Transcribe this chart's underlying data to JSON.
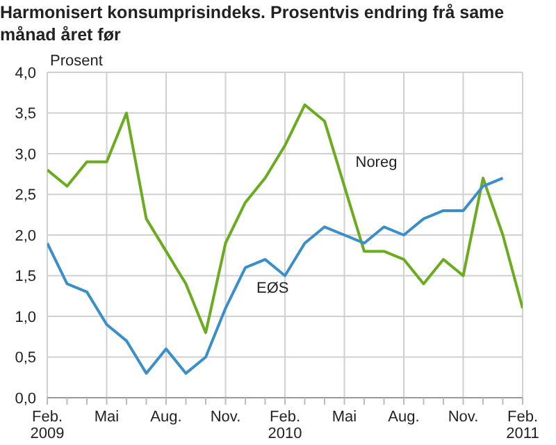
{
  "chart_data": {
    "type": "line",
    "title": "Harmonisert konsumprisindeks. Prosentvis endring frå same månad året før",
    "ylabel": "Prosent",
    "categories": [
      "Feb. 2009",
      null,
      null,
      "Mai",
      null,
      null,
      "Aug.",
      null,
      null,
      "Nov.",
      null,
      null,
      "Feb. 2010",
      null,
      null,
      "Mai",
      null,
      null,
      "Aug.",
      null,
      null,
      "Nov.",
      null,
      null,
      "Feb. 2011"
    ],
    "series": [
      {
        "name": "Noreg",
        "color": "#6aab1f",
        "values": [
          2.8,
          2.6,
          2.9,
          2.9,
          3.5,
          2.2,
          1.8,
          1.4,
          0.8,
          1.9,
          2.4,
          2.7,
          3.1,
          3.6,
          3.4,
          2.6,
          1.8,
          1.8,
          1.7,
          1.4,
          1.7,
          1.5,
          2.7,
          2.0,
          1.1
        ]
      },
      {
        "name": "EØS",
        "color": "#3a8fc8",
        "values": [
          1.9,
          1.4,
          1.3,
          0.9,
          0.7,
          0.3,
          0.6,
          0.3,
          0.5,
          1.1,
          1.6,
          1.7,
          1.5,
          1.9,
          2.1,
          2.0,
          1.9,
          2.1,
          2.0,
          2.2,
          2.3,
          2.3,
          2.6,
          2.7,
          null
        ]
      }
    ],
    "ylim": [
      0,
      4
    ],
    "yticks": [
      {
        "value": 0,
        "label": "0,0"
      },
      {
        "value": 0.5,
        "label": "0,5"
      },
      {
        "value": 1,
        "label": "1,0"
      },
      {
        "value": 1.5,
        "label": "1,5"
      },
      {
        "value": 2,
        "label": "2,0"
      },
      {
        "value": 2.5,
        "label": "2,5"
      },
      {
        "value": 3,
        "label": "3,0"
      },
      {
        "value": 3.5,
        "label": "3,5"
      },
      {
        "value": 4,
        "label": "4,0"
      }
    ],
    "grid": true,
    "marker": "none",
    "line_style": "solid"
  }
}
